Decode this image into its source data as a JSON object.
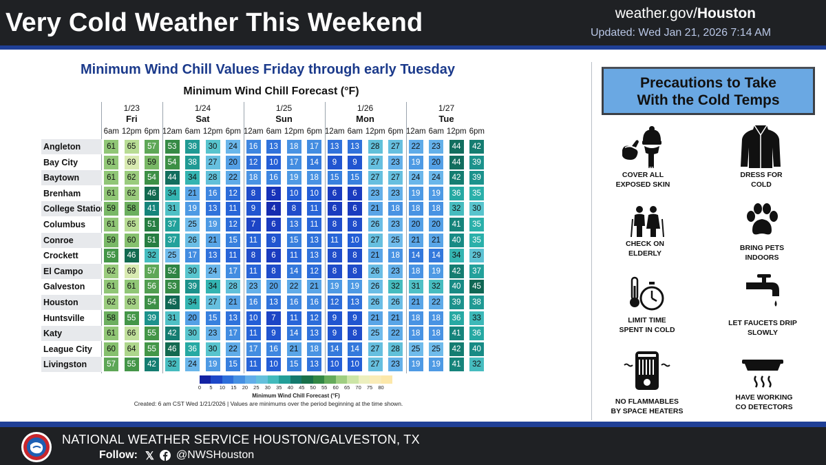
{
  "header": {
    "title": "Very Cold Weather This Weekend",
    "site_prefix": "weather.gov/",
    "site_office": "Houston",
    "updated": "Updated: Wed Jan 21, 2026 7:14 AM"
  },
  "panel": {
    "subtitle": "Minimum Wind Chill Values Friday through early Tuesday",
    "table_title": "Minimum Wind Chill Forecast (°F)",
    "days": [
      {
        "date": "1/23",
        "name": "Fri",
        "times": [
          "6am",
          "12pm",
          "6pm"
        ]
      },
      {
        "date": "1/24",
        "name": "Sat",
        "times": [
          "12am",
          "6am",
          "12pm",
          "6pm"
        ]
      },
      {
        "date": "1/25",
        "name": "Sun",
        "times": [
          "12am",
          "6am",
          "12pm",
          "6pm"
        ]
      },
      {
        "date": "1/26",
        "name": "Mon",
        "times": [
          "12am",
          "6am",
          "12pm",
          "6pm"
        ]
      },
      {
        "date": "1/27",
        "name": "Tue",
        "times": [
          "12am",
          "6am",
          "12pm",
          "6pm"
        ]
      }
    ],
    "rows": [
      {
        "city": "Angleton",
        "values": [
          61,
          65,
          57,
          53,
          38,
          30,
          24,
          16,
          13,
          18,
          17,
          13,
          13,
          28,
          27,
          22,
          23,
          44,
          42
        ]
      },
      {
        "city": "Bay City",
        "values": [
          61,
          69,
          59,
          54,
          38,
          27,
          20,
          12,
          10,
          17,
          14,
          9,
          9,
          27,
          23,
          19,
          20,
          44,
          39
        ]
      },
      {
        "city": "Baytown",
        "values": [
          61,
          62,
          54,
          44,
          34,
          28,
          22,
          18,
          16,
          19,
          18,
          15,
          15,
          27,
          27,
          24,
          24,
          42,
          39
        ]
      },
      {
        "city": "Brenham",
        "values": [
          61,
          62,
          46,
          34,
          21,
          16,
          12,
          8,
          5,
          10,
          10,
          6,
          6,
          23,
          23,
          19,
          19,
          36,
          35
        ]
      },
      {
        "city": "College Station",
        "values": [
          59,
          58,
          41,
          31,
          19,
          13,
          11,
          9,
          4,
          8,
          11,
          6,
          6,
          21,
          18,
          18,
          18,
          32,
          30
        ]
      },
      {
        "city": "Columbus",
        "values": [
          61,
          65,
          51,
          37,
          25,
          19,
          12,
          7,
          6,
          13,
          11,
          8,
          8,
          26,
          23,
          20,
          20,
          41,
          35
        ]
      },
      {
        "city": "Conroe",
        "values": [
          59,
          60,
          51,
          37,
          26,
          21,
          15,
          11,
          9,
          15,
          13,
          11,
          10,
          27,
          25,
          21,
          21,
          40,
          35
        ]
      },
      {
        "city": "Crockett",
        "values": [
          55,
          46,
          32,
          25,
          17,
          13,
          11,
          8,
          6,
          11,
          13,
          8,
          8,
          21,
          18,
          14,
          14,
          34,
          29
        ]
      },
      {
        "city": "El Campo",
        "values": [
          62,
          69,
          57,
          52,
          30,
          24,
          17,
          11,
          8,
          14,
          12,
          8,
          8,
          26,
          23,
          18,
          19,
          42,
          37
        ]
      },
      {
        "city": "Galveston",
        "values": [
          61,
          61,
          56,
          53,
          39,
          34,
          28,
          23,
          20,
          22,
          21,
          19,
          19,
          26,
          32,
          31,
          32,
          40,
          45
        ]
      },
      {
        "city": "Houston",
        "values": [
          62,
          63,
          54,
          45,
          34,
          27,
          21,
          16,
          13,
          16,
          16,
          12,
          13,
          26,
          26,
          21,
          22,
          39,
          38
        ]
      },
      {
        "city": "Huntsville",
        "values": [
          58,
          55,
          39,
          31,
          20,
          15,
          13,
          10,
          7,
          11,
          12,
          9,
          9,
          21,
          21,
          18,
          18,
          36,
          33
        ]
      },
      {
        "city": "Katy",
        "values": [
          61,
          66,
          55,
          42,
          30,
          23,
          17,
          11,
          9,
          14,
          13,
          9,
          8,
          25,
          22,
          18,
          18,
          41,
          36
        ]
      },
      {
        "city": "League City",
        "values": [
          60,
          64,
          55,
          46,
          36,
          30,
          22,
          17,
          16,
          21,
          18,
          14,
          14,
          27,
          28,
          25,
          25,
          42,
          40
        ]
      },
      {
        "city": "Livingston",
        "values": [
          57,
          55,
          42,
          32,
          24,
          19,
          15,
          11,
          10,
          15,
          13,
          10,
          10,
          27,
          23,
          19,
          19,
          41,
          32
        ]
      }
    ],
    "legend_ticks": [
      "0",
      "5",
      "10",
      "15",
      "20",
      "25",
      "30",
      "35",
      "40",
      "45",
      "50",
      "55",
      "60",
      "65",
      "70",
      "75",
      "80"
    ],
    "legend_title": "Minimum Wind Chill Forecast (°F)",
    "created": "Created: 6 am CST Wed 1/21/2026  |  Values are minimums over the period beginning at the time shown."
  },
  "precautions": {
    "title_line1": "Precautions to Take",
    "title_line2": "With the Cold Temps",
    "tips": [
      {
        "icon": "scarf-hat-icon",
        "line1": "COVER ALL",
        "line2": "EXPOSED SKIN"
      },
      {
        "icon": "coat-icon",
        "line1": "DRESS FOR",
        "line2": "COLD"
      },
      {
        "icon": "elderly-couple-icon",
        "line1": "CHECK ON",
        "line2": "ELDERLY"
      },
      {
        "icon": "paw-icon",
        "line1": "BRING PETS",
        "line2": "INDOORS"
      },
      {
        "icon": "thermometer-stopwatch-icon",
        "line1": "LIMIT TIME",
        "line2": "SPENT IN COLD"
      },
      {
        "icon": "faucet-icon",
        "line1": "LET FAUCETS DRIP",
        "line2": "SLOWLY"
      },
      {
        "icon": "space-heater-icon",
        "line1": "NO FLAMMABLES",
        "line2": "BY SPACE HEATERS"
      },
      {
        "icon": "co-detector-icon",
        "line1": "HAVE WORKING",
        "line2": "CO DETECTORS"
      }
    ]
  },
  "footer": {
    "office": "NATIONAL WEATHER SERVICE HOUSTON/GALVESTON, TX",
    "follow": "Follow:",
    "handle": "@NWSHouston"
  },
  "colors": {
    "header_bg": "#1f2124",
    "accent_blue": "#1f3f96",
    "subtitle": "#1b3a8b",
    "precaution_box": "#6aa8e3"
  }
}
